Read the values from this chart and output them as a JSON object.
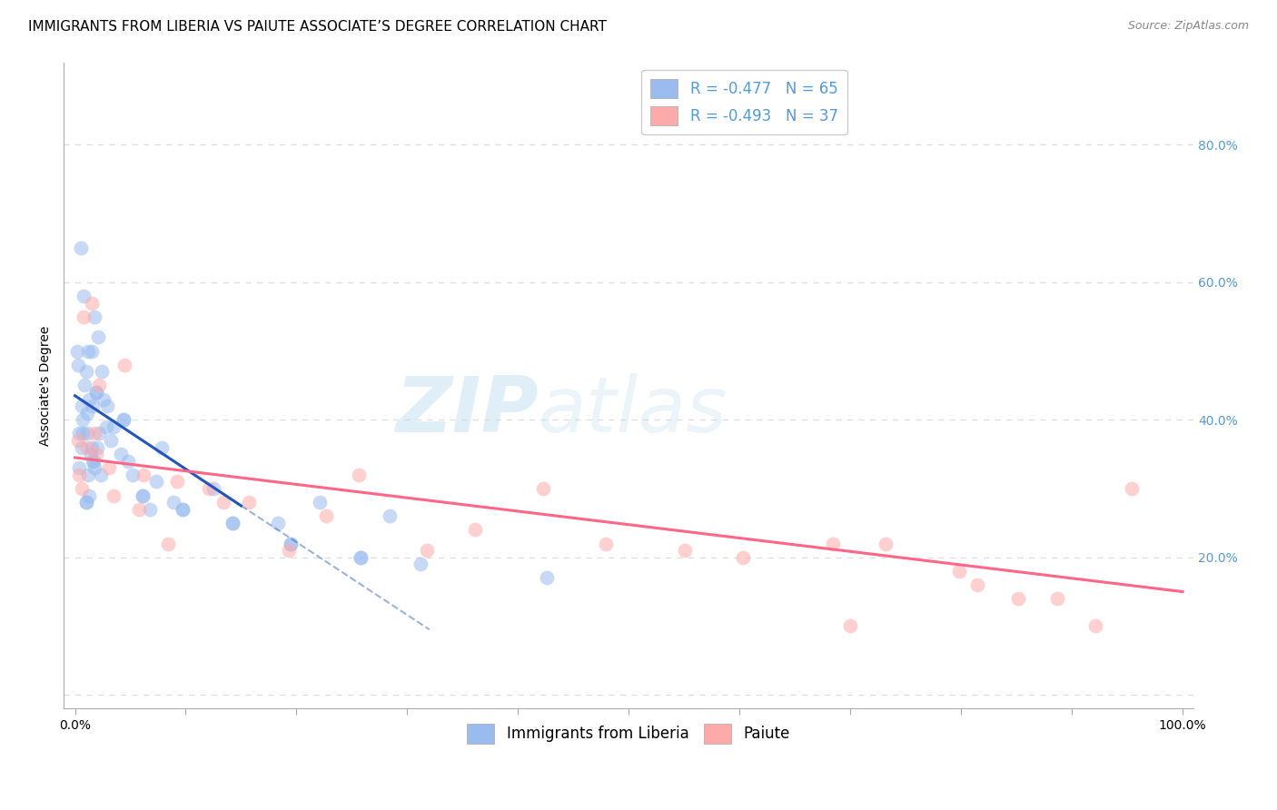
{
  "title": "IMMIGRANTS FROM LIBERIA VS PAIUTE ASSOCIATE’S DEGREE CORRELATION CHART",
  "source": "Source: ZipAtlas.com",
  "ylabel": "Associate's Degree",
  "x_ticks": [
    0.0,
    10.0,
    20.0,
    30.0,
    40.0,
    50.0,
    60.0,
    70.0,
    80.0,
    90.0,
    100.0
  ],
  "x_tick_labels": [
    "0.0%",
    "",
    "",
    "",
    "",
    "",
    "",
    "",
    "",
    "",
    "100.0%"
  ],
  "y_ticks": [
    0.0,
    20.0,
    40.0,
    60.0,
    80.0
  ],
  "y_tick_labels_right": [
    "",
    "20.0%",
    "40.0%",
    "60.0%",
    "80.0%"
  ],
  "xlim": [
    -1,
    101
  ],
  "ylim": [
    -2,
    92
  ],
  "legend_entry1": "R = -0.477   N = 65",
  "legend_entry2": "R = -0.493   N = 37",
  "blue_color": "#99BBEE",
  "pink_color": "#FFAAAA",
  "blue_line_color": "#2255BB",
  "pink_line_color": "#FF6688",
  "watermark_zip": "ZIP",
  "watermark_atlas": "atlas",
  "blue_scatter_x": [
    0.3,
    0.5,
    0.6,
    0.6,
    0.7,
    0.7,
    0.8,
    0.9,
    1.0,
    1.0,
    1.1,
    1.1,
    1.2,
    1.2,
    1.3,
    1.3,
    1.4,
    1.5,
    1.5,
    1.6,
    1.6,
    1.7,
    1.8,
    1.8,
    1.9,
    2.0,
    2.1,
    2.2,
    2.3,
    2.4,
    2.6,
    2.8,
    3.2,
    3.5,
    4.1,
    4.4,
    4.8,
    5.2,
    6.1,
    6.8,
    7.3,
    7.8,
    8.9,
    9.7,
    12.5,
    14.2,
    18.3,
    19.5,
    22.1,
    25.8,
    28.4,
    31.2,
    42.6,
    0.2,
    0.4,
    0.4,
    1.0,
    1.9,
    2.9,
    4.4,
    6.1,
    9.7,
    14.2,
    19.5,
    25.8
  ],
  "blue_scatter_y": [
    48.0,
    65.0,
    36.0,
    42.0,
    40.0,
    38.0,
    58.0,
    45.0,
    47.0,
    28.0,
    41.0,
    38.0,
    50.0,
    32.0,
    43.0,
    29.0,
    35.0,
    36.0,
    50.0,
    42.0,
    34.0,
    34.0,
    55.0,
    33.0,
    44.0,
    36.0,
    52.0,
    38.0,
    32.0,
    47.0,
    43.0,
    39.0,
    37.0,
    39.0,
    35.0,
    40.0,
    34.0,
    32.0,
    29.0,
    27.0,
    31.0,
    36.0,
    28.0,
    27.0,
    30.0,
    25.0,
    25.0,
    22.0,
    28.0,
    20.0,
    26.0,
    19.0,
    17.0,
    50.0,
    33.0,
    38.0,
    28.0,
    44.0,
    42.0,
    40.0,
    29.0,
    27.0,
    25.0,
    22.0,
    20.0
  ],
  "pink_scatter_x": [
    0.3,
    0.4,
    0.6,
    0.8,
    1.1,
    1.5,
    1.8,
    1.9,
    2.2,
    3.1,
    3.5,
    4.5,
    5.8,
    6.2,
    8.4,
    9.2,
    12.1,
    13.4,
    15.7,
    19.3,
    22.7,
    25.6,
    31.8,
    36.1,
    42.3,
    47.9,
    55.1,
    60.3,
    68.4,
    73.2,
    79.8,
    81.5,
    85.2,
    88.7,
    92.1,
    95.4,
    70.0
  ],
  "pink_scatter_y": [
    37.0,
    32.0,
    30.0,
    55.0,
    36.0,
    57.0,
    38.0,
    35.0,
    45.0,
    33.0,
    29.0,
    48.0,
    27.0,
    32.0,
    22.0,
    31.0,
    30.0,
    28.0,
    28.0,
    21.0,
    26.0,
    32.0,
    21.0,
    24.0,
    30.0,
    22.0,
    21.0,
    20.0,
    22.0,
    22.0,
    18.0,
    16.0,
    14.0,
    14.0,
    10.0,
    30.0,
    10.0
  ],
  "blue_reg_x0": 0.0,
  "blue_reg_y0": 43.5,
  "blue_reg_x1": 15.0,
  "blue_reg_y1": 27.5,
  "blue_dash_x0": 15.0,
  "blue_dash_y0": 27.5,
  "blue_dash_x1": 32.0,
  "blue_dash_y1": 9.5,
  "pink_reg_x0": 0.0,
  "pink_reg_y0": 34.5,
  "pink_reg_x1": 100.0,
  "pink_reg_y1": 15.0,
  "background_color": "#ffffff",
  "grid_color": "#dddddd",
  "title_fontsize": 11,
  "tick_fontsize": 10,
  "source_fontsize": 9,
  "right_tick_color": "#5599DD",
  "axis_label_fontsize": 10,
  "legend_fontsize": 12,
  "marker_size": 130,
  "marker_alpha": 0.55
}
